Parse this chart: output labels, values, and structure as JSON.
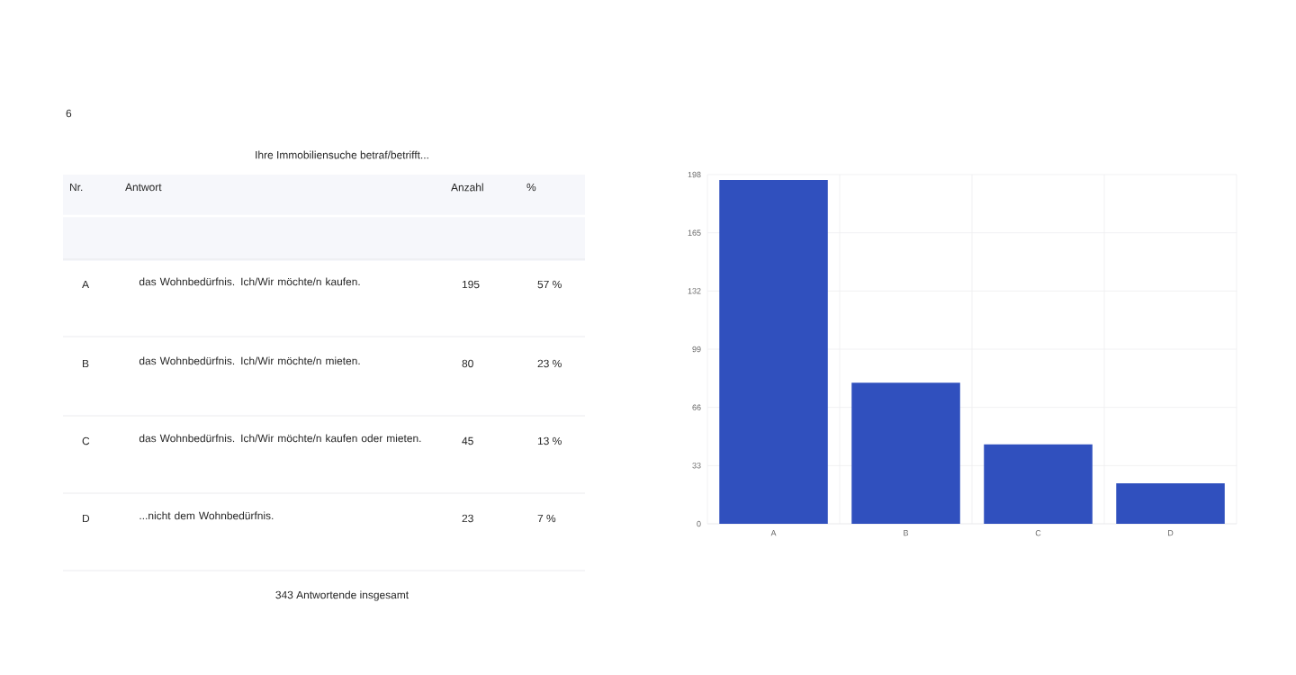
{
  "chart_data": [
    {
      "type": "other",
      "title": "Ihre Immobiliensuche betraf/betrifft...",
      "categories": [
        "A",
        "B",
        "C",
        "D"
      ],
      "annotations": [
        "6",
        "Nr.",
        "Antwort",
        "Anzahl",
        "%",
        "das Wohnbedürfnis. Ich/Wir möchte/n kaufen.",
        "das Wohnbedürfnis. Ich/Wir möchte/n mieten.",
        "das Wohnbedürfnis. Ich/Wir möchte/n kaufen oder mieten.",
        "...nicht dem Wohnbedürfnis.",
        "195",
        "80",
        "45",
        "23",
        "57 %",
        "23 %",
        "13 %",
        "7 %",
        "343 Antwortende insgesamt"
      ]
    },
    {
      "type": "bar",
      "categories": [
        "A",
        "B",
        "C",
        "D"
      ],
      "values": [
        195,
        80,
        45,
        23
      ],
      "color": "#3050be",
      "ylim": [
        0,
        198
      ],
      "yticks": [
        0,
        33,
        66,
        99,
        132,
        165,
        198
      ],
      "grid": true
    }
  ]
}
